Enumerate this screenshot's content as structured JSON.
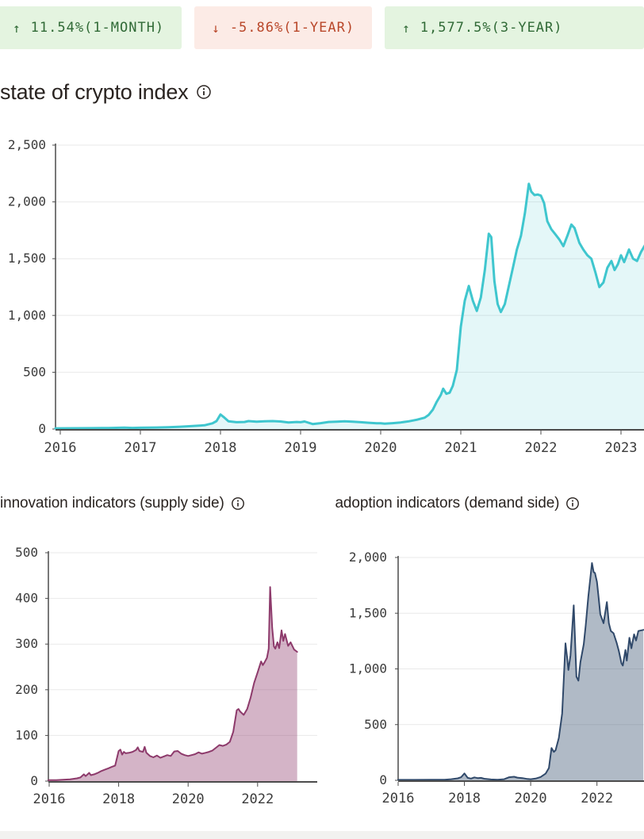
{
  "performance_badges": [
    {
      "arrow": "↑",
      "label": "11.54%(1-MONTH)",
      "direction": "up",
      "bg_color": "#e4f4e0",
      "text_color": "#306a36"
    },
    {
      "arrow": "↓",
      "label": "-5.86%(1-YEAR)",
      "direction": "down",
      "bg_color": "#fcebe6",
      "text_color": "#b9472a"
    },
    {
      "arrow": "↑",
      "label": "1,577.5%(3-YEAR)",
      "direction": "up",
      "bg_color": "#e4f4e0",
      "text_color": "#306a36"
    }
  ],
  "titles": {
    "main": "state of crypto index",
    "supply": "innovation indicators (supply side)",
    "demand": "adoption indicators (demand side)"
  },
  "colors": {
    "index_line": "#3fc6ce",
    "supply_line": "#8d3a6b",
    "demand_line": "#30496a",
    "grid": "#e9e9e9",
    "axis": "#4c4c4c",
    "text": "#292320"
  },
  "chart_data": [
    {
      "id": "index",
      "type": "area",
      "title": "state of crypto index",
      "ylim": [
        0,
        2500
      ],
      "xlim": [
        2016,
        2023.3
      ],
      "yticks": [
        0,
        500,
        1000,
        1500,
        2000,
        2500
      ],
      "ytick_labels": [
        "0",
        "500",
        "1,000",
        "1,500",
        "2,000",
        "2,500"
      ],
      "xticks": [
        2016,
        2017,
        2018,
        2019,
        2020,
        2021,
        2022,
        2023
      ],
      "xtick_labels": [
        "2016",
        "2017",
        "2018",
        "2019",
        "2020",
        "2021",
        "2022",
        "2023"
      ],
      "grid": true,
      "legend": "none",
      "line_color": "#3fc6ce",
      "fill_color": "#3fc6ce",
      "fill_opacity": 0.14,
      "points": [
        [
          2016.0,
          6
        ],
        [
          2016.2,
          7
        ],
        [
          2016.4,
          8
        ],
        [
          2016.6,
          9
        ],
        [
          2016.8,
          12
        ],
        [
          2016.9,
          10
        ],
        [
          2017.0,
          11
        ],
        [
          2017.1,
          12
        ],
        [
          2017.2,
          13
        ],
        [
          2017.35,
          16
        ],
        [
          2017.5,
          20
        ],
        [
          2017.65,
          26
        ],
        [
          2017.8,
          33
        ],
        [
          2017.9,
          50
        ],
        [
          2017.95,
          70
        ],
        [
          2018.0,
          128
        ],
        [
          2018.05,
          100
        ],
        [
          2018.1,
          68
        ],
        [
          2018.2,
          60
        ],
        [
          2018.3,
          62
        ],
        [
          2018.35,
          70
        ],
        [
          2018.45,
          64
        ],
        [
          2018.55,
          68
        ],
        [
          2018.65,
          70
        ],
        [
          2018.75,
          66
        ],
        [
          2018.85,
          58
        ],
        [
          2018.95,
          62
        ],
        [
          2019.0,
          60
        ],
        [
          2019.05,
          66
        ],
        [
          2019.15,
          44
        ],
        [
          2019.25,
          52
        ],
        [
          2019.35,
          62
        ],
        [
          2019.45,
          64
        ],
        [
          2019.55,
          68
        ],
        [
          2019.65,
          64
        ],
        [
          2019.75,
          60
        ],
        [
          2019.85,
          55
        ],
        [
          2019.95,
          50
        ],
        [
          2020.0,
          50
        ],
        [
          2020.05,
          47
        ],
        [
          2020.15,
          52
        ],
        [
          2020.25,
          58
        ],
        [
          2020.35,
          68
        ],
        [
          2020.45,
          82
        ],
        [
          2020.55,
          100
        ],
        [
          2020.6,
          125
        ],
        [
          2020.65,
          170
        ],
        [
          2020.7,
          240
        ],
        [
          2020.75,
          300
        ],
        [
          2020.78,
          355
        ],
        [
          2020.82,
          310
        ],
        [
          2020.86,
          320
        ],
        [
          2020.9,
          380
        ],
        [
          2020.95,
          520
        ],
        [
          2021.0,
          900
        ],
        [
          2021.05,
          1130
        ],
        [
          2021.1,
          1260
        ],
        [
          2021.15,
          1130
        ],
        [
          2021.2,
          1040
        ],
        [
          2021.25,
          1160
        ],
        [
          2021.3,
          1400
        ],
        [
          2021.35,
          1720
        ],
        [
          2021.38,
          1690
        ],
        [
          2021.42,
          1300
        ],
        [
          2021.46,
          1100
        ],
        [
          2021.5,
          1030
        ],
        [
          2021.55,
          1100
        ],
        [
          2021.6,
          1260
        ],
        [
          2021.65,
          1420
        ],
        [
          2021.7,
          1580
        ],
        [
          2021.75,
          1700
        ],
        [
          2021.8,
          1900
        ],
        [
          2021.85,
          2160
        ],
        [
          2021.88,
          2090
        ],
        [
          2021.92,
          2060
        ],
        [
          2021.96,
          2065
        ],
        [
          2022.0,
          2055
        ],
        [
          2022.04,
          1990
        ],
        [
          2022.08,
          1830
        ],
        [
          2022.13,
          1760
        ],
        [
          2022.18,
          1715
        ],
        [
          2022.23,
          1670
        ],
        [
          2022.28,
          1610
        ],
        [
          2022.33,
          1700
        ],
        [
          2022.38,
          1800
        ],
        [
          2022.42,
          1770
        ],
        [
          2022.48,
          1640
        ],
        [
          2022.53,
          1580
        ],
        [
          2022.58,
          1530
        ],
        [
          2022.63,
          1500
        ],
        [
          2022.68,
          1380
        ],
        [
          2022.73,
          1250
        ],
        [
          2022.78,
          1290
        ],
        [
          2022.83,
          1420
        ],
        [
          2022.88,
          1480
        ],
        [
          2022.92,
          1400
        ],
        [
          2022.96,
          1450
        ],
        [
          2023.0,
          1530
        ],
        [
          2023.04,
          1470
        ],
        [
          2023.1,
          1580
        ],
        [
          2023.15,
          1500
        ],
        [
          2023.2,
          1480
        ],
        [
          2023.25,
          1560
        ],
        [
          2023.3,
          1620
        ]
      ]
    },
    {
      "id": "innovation",
      "type": "area",
      "title": "innovation indicators (supply side)",
      "ylim": [
        0,
        500
      ],
      "xlim": [
        2016,
        2023.15
      ],
      "yticks": [
        0,
        100,
        200,
        300,
        400,
        500
      ],
      "ytick_labels": [
        "0",
        "100",
        "200",
        "300",
        "400",
        "500"
      ],
      "xticks": [
        2016,
        2018,
        2020,
        2022
      ],
      "xtick_labels": [
        "2016",
        "2018",
        "2020",
        "2022"
      ],
      "grid": true,
      "legend": "none",
      "line_color": "#8d3a6b",
      "fill_color": "#8d3a6b",
      "fill_opacity": 0.38,
      "points": [
        [
          2016.0,
          2
        ],
        [
          2016.2,
          2
        ],
        [
          2016.4,
          3
        ],
        [
          2016.6,
          4
        ],
        [
          2016.8,
          6
        ],
        [
          2016.9,
          8
        ],
        [
          2017.0,
          15
        ],
        [
          2017.05,
          11
        ],
        [
          2017.15,
          18
        ],
        [
          2017.2,
          13
        ],
        [
          2017.3,
          15
        ],
        [
          2017.4,
          18
        ],
        [
          2017.5,
          22
        ],
        [
          2017.6,
          25
        ],
        [
          2017.7,
          28
        ],
        [
          2017.8,
          31
        ],
        [
          2017.9,
          34
        ],
        [
          2018.0,
          66
        ],
        [
          2018.05,
          69
        ],
        [
          2018.1,
          58
        ],
        [
          2018.15,
          64
        ],
        [
          2018.2,
          61
        ],
        [
          2018.3,
          62
        ],
        [
          2018.4,
          64
        ],
        [
          2018.5,
          68
        ],
        [
          2018.55,
          74
        ],
        [
          2018.6,
          66
        ],
        [
          2018.7,
          64
        ],
        [
          2018.75,
          75
        ],
        [
          2018.8,
          62
        ],
        [
          2018.9,
          55
        ],
        [
          2019.0,
          52
        ],
        [
          2019.1,
          56
        ],
        [
          2019.2,
          51
        ],
        [
          2019.3,
          54
        ],
        [
          2019.4,
          57
        ],
        [
          2019.5,
          55
        ],
        [
          2019.6,
          65
        ],
        [
          2019.7,
          66
        ],
        [
          2019.8,
          60
        ],
        [
          2019.9,
          57
        ],
        [
          2020.0,
          55
        ],
        [
          2020.1,
          57
        ],
        [
          2020.2,
          59
        ],
        [
          2020.3,
          63
        ],
        [
          2020.4,
          60
        ],
        [
          2020.5,
          62
        ],
        [
          2020.6,
          64
        ],
        [
          2020.7,
          67
        ],
        [
          2020.8,
          73
        ],
        [
          2020.9,
          79
        ],
        [
          2021.0,
          77
        ],
        [
          2021.1,
          80
        ],
        [
          2021.2,
          86
        ],
        [
          2021.3,
          108
        ],
        [
          2021.4,
          155
        ],
        [
          2021.45,
          158
        ],
        [
          2021.5,
          152
        ],
        [
          2021.6,
          145
        ],
        [
          2021.7,
          158
        ],
        [
          2021.8,
          183
        ],
        [
          2021.9,
          215
        ],
        [
          2022.0,
          238
        ],
        [
          2022.1,
          262
        ],
        [
          2022.15,
          254
        ],
        [
          2022.2,
          260
        ],
        [
          2022.27,
          270
        ],
        [
          2022.32,
          290
        ],
        [
          2022.36,
          425
        ],
        [
          2022.42,
          336
        ],
        [
          2022.47,
          295
        ],
        [
          2022.51,
          290
        ],
        [
          2022.57,
          304
        ],
        [
          2022.62,
          291
        ],
        [
          2022.69,
          330
        ],
        [
          2022.74,
          307
        ],
        [
          2022.79,
          322
        ],
        [
          2022.88,
          296
        ],
        [
          2022.95,
          304
        ],
        [
          2023.05,
          288
        ],
        [
          2023.14,
          283
        ]
      ]
    },
    {
      "id": "adoption",
      "type": "area",
      "title": "adoption indicators (demand side)",
      "ylim": [
        0,
        2000
      ],
      "xlim": [
        2016,
        2023.4
      ],
      "yticks": [
        0,
        500,
        1000,
        1500,
        2000
      ],
      "ytick_labels": [
        "0",
        "500",
        "1,000",
        "1,500",
        "2,000"
      ],
      "xticks": [
        2016,
        2018,
        2020,
        2022
      ],
      "xtick_labels": [
        "2016",
        "2018",
        "2020",
        "2022"
      ],
      "grid": true,
      "legend": "none",
      "line_color": "#30496a",
      "fill_color": "#30496a",
      "fill_opacity": 0.38,
      "points": [
        [
          2016.0,
          4
        ],
        [
          2016.5,
          4
        ],
        [
          2017.0,
          5
        ],
        [
          2017.4,
          6
        ],
        [
          2017.6,
          10
        ],
        [
          2017.8,
          18
        ],
        [
          2017.9,
          28
        ],
        [
          2018.0,
          62
        ],
        [
          2018.1,
          22
        ],
        [
          2018.2,
          16
        ],
        [
          2018.3,
          26
        ],
        [
          2018.4,
          20
        ],
        [
          2018.5,
          22
        ],
        [
          2018.6,
          14
        ],
        [
          2018.8,
          8
        ],
        [
          2019.0,
          6
        ],
        [
          2019.2,
          10
        ],
        [
          2019.35,
          28
        ],
        [
          2019.5,
          32
        ],
        [
          2019.6,
          24
        ],
        [
          2019.75,
          20
        ],
        [
          2019.9,
          12
        ],
        [
          2020.0,
          10
        ],
        [
          2020.15,
          16
        ],
        [
          2020.3,
          30
        ],
        [
          2020.45,
          60
        ],
        [
          2020.55,
          110
        ],
        [
          2020.63,
          290
        ],
        [
          2020.7,
          255
        ],
        [
          2020.75,
          270
        ],
        [
          2020.85,
          380
        ],
        [
          2020.95,
          600
        ],
        [
          2021.05,
          1230
        ],
        [
          2021.1,
          1100
        ],
        [
          2021.14,
          990
        ],
        [
          2021.2,
          1120
        ],
        [
          2021.3,
          1570
        ],
        [
          2021.38,
          930
        ],
        [
          2021.44,
          895
        ],
        [
          2021.5,
          1060
        ],
        [
          2021.6,
          1220
        ],
        [
          2021.66,
          1390
        ],
        [
          2021.74,
          1650
        ],
        [
          2021.85,
          1950
        ],
        [
          2021.9,
          1870
        ],
        [
          2021.94,
          1860
        ],
        [
          2022.0,
          1780
        ],
        [
          2022.05,
          1640
        ],
        [
          2022.1,
          1490
        ],
        [
          2022.2,
          1410
        ],
        [
          2022.3,
          1600
        ],
        [
          2022.36,
          1410
        ],
        [
          2022.42,
          1340
        ],
        [
          2022.5,
          1320
        ],
        [
          2022.6,
          1230
        ],
        [
          2022.66,
          1160
        ],
        [
          2022.74,
          1050
        ],
        [
          2022.78,
          1030
        ],
        [
          2022.86,
          1170
        ],
        [
          2022.9,
          1075
        ],
        [
          2022.98,
          1280
        ],
        [
          2023.04,
          1185
        ],
        [
          2023.12,
          1310
        ],
        [
          2023.18,
          1255
        ],
        [
          2023.25,
          1340
        ],
        [
          2023.4,
          1350
        ]
      ]
    }
  ]
}
